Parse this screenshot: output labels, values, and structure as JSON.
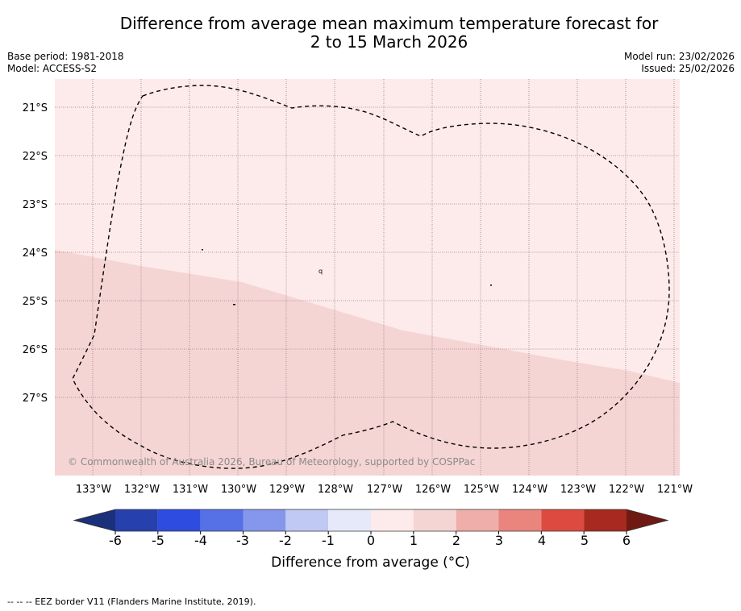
{
  "title_line1": "Difference from average mean maximum temperature forecast for",
  "title_line2": "2 to 15 March 2026",
  "base_period": "Base period: 1981-2018",
  "model": "Model: ACCESS-S2",
  "model_run": "Model run: 23/02/2026",
  "issued": "Issued: 25/02/2026",
  "lat_labels": [
    "21°S",
    "22°S",
    "23°S",
    "24°S",
    "25°S",
    "26°S",
    "27°S"
  ],
  "lon_labels": [
    "133°W",
    "132°W",
    "131°W",
    "130°W",
    "129°W",
    "128°W",
    "127°W",
    "126°W",
    "125°W",
    "124°W",
    "123°W",
    "122°W",
    "121°W"
  ],
  "copyright": "© Commonwealth of Australia 2026, Bureau of Meteorology, supported by COSPPac",
  "colorbar": {
    "ticks": [
      "-6",
      "-5",
      "-4",
      "-3",
      "-2",
      "-1",
      "0",
      "1",
      "2",
      "3",
      "4",
      "5",
      "6"
    ],
    "colors": [
      "#2640ad",
      "#2f4ce0",
      "#5670e6",
      "#8597ec",
      "#c0c8f4",
      "#e6e9f9",
      "#fcebea",
      "#f5d5d4",
      "#efaea9",
      "#e9857d",
      "#dd4a3f",
      "#a8291f"
    ],
    "under_color": "#1c2f7a",
    "over_color": "#6e1a13",
    "label": "Difference from average (°C)"
  },
  "map": {
    "zone_0_1_color": "#fcebea",
    "zone_1_2_color": "#f5d5d4"
  },
  "footnote": "--  --  -- EEZ border V11 (Flanders Marine Institute, 2019)."
}
